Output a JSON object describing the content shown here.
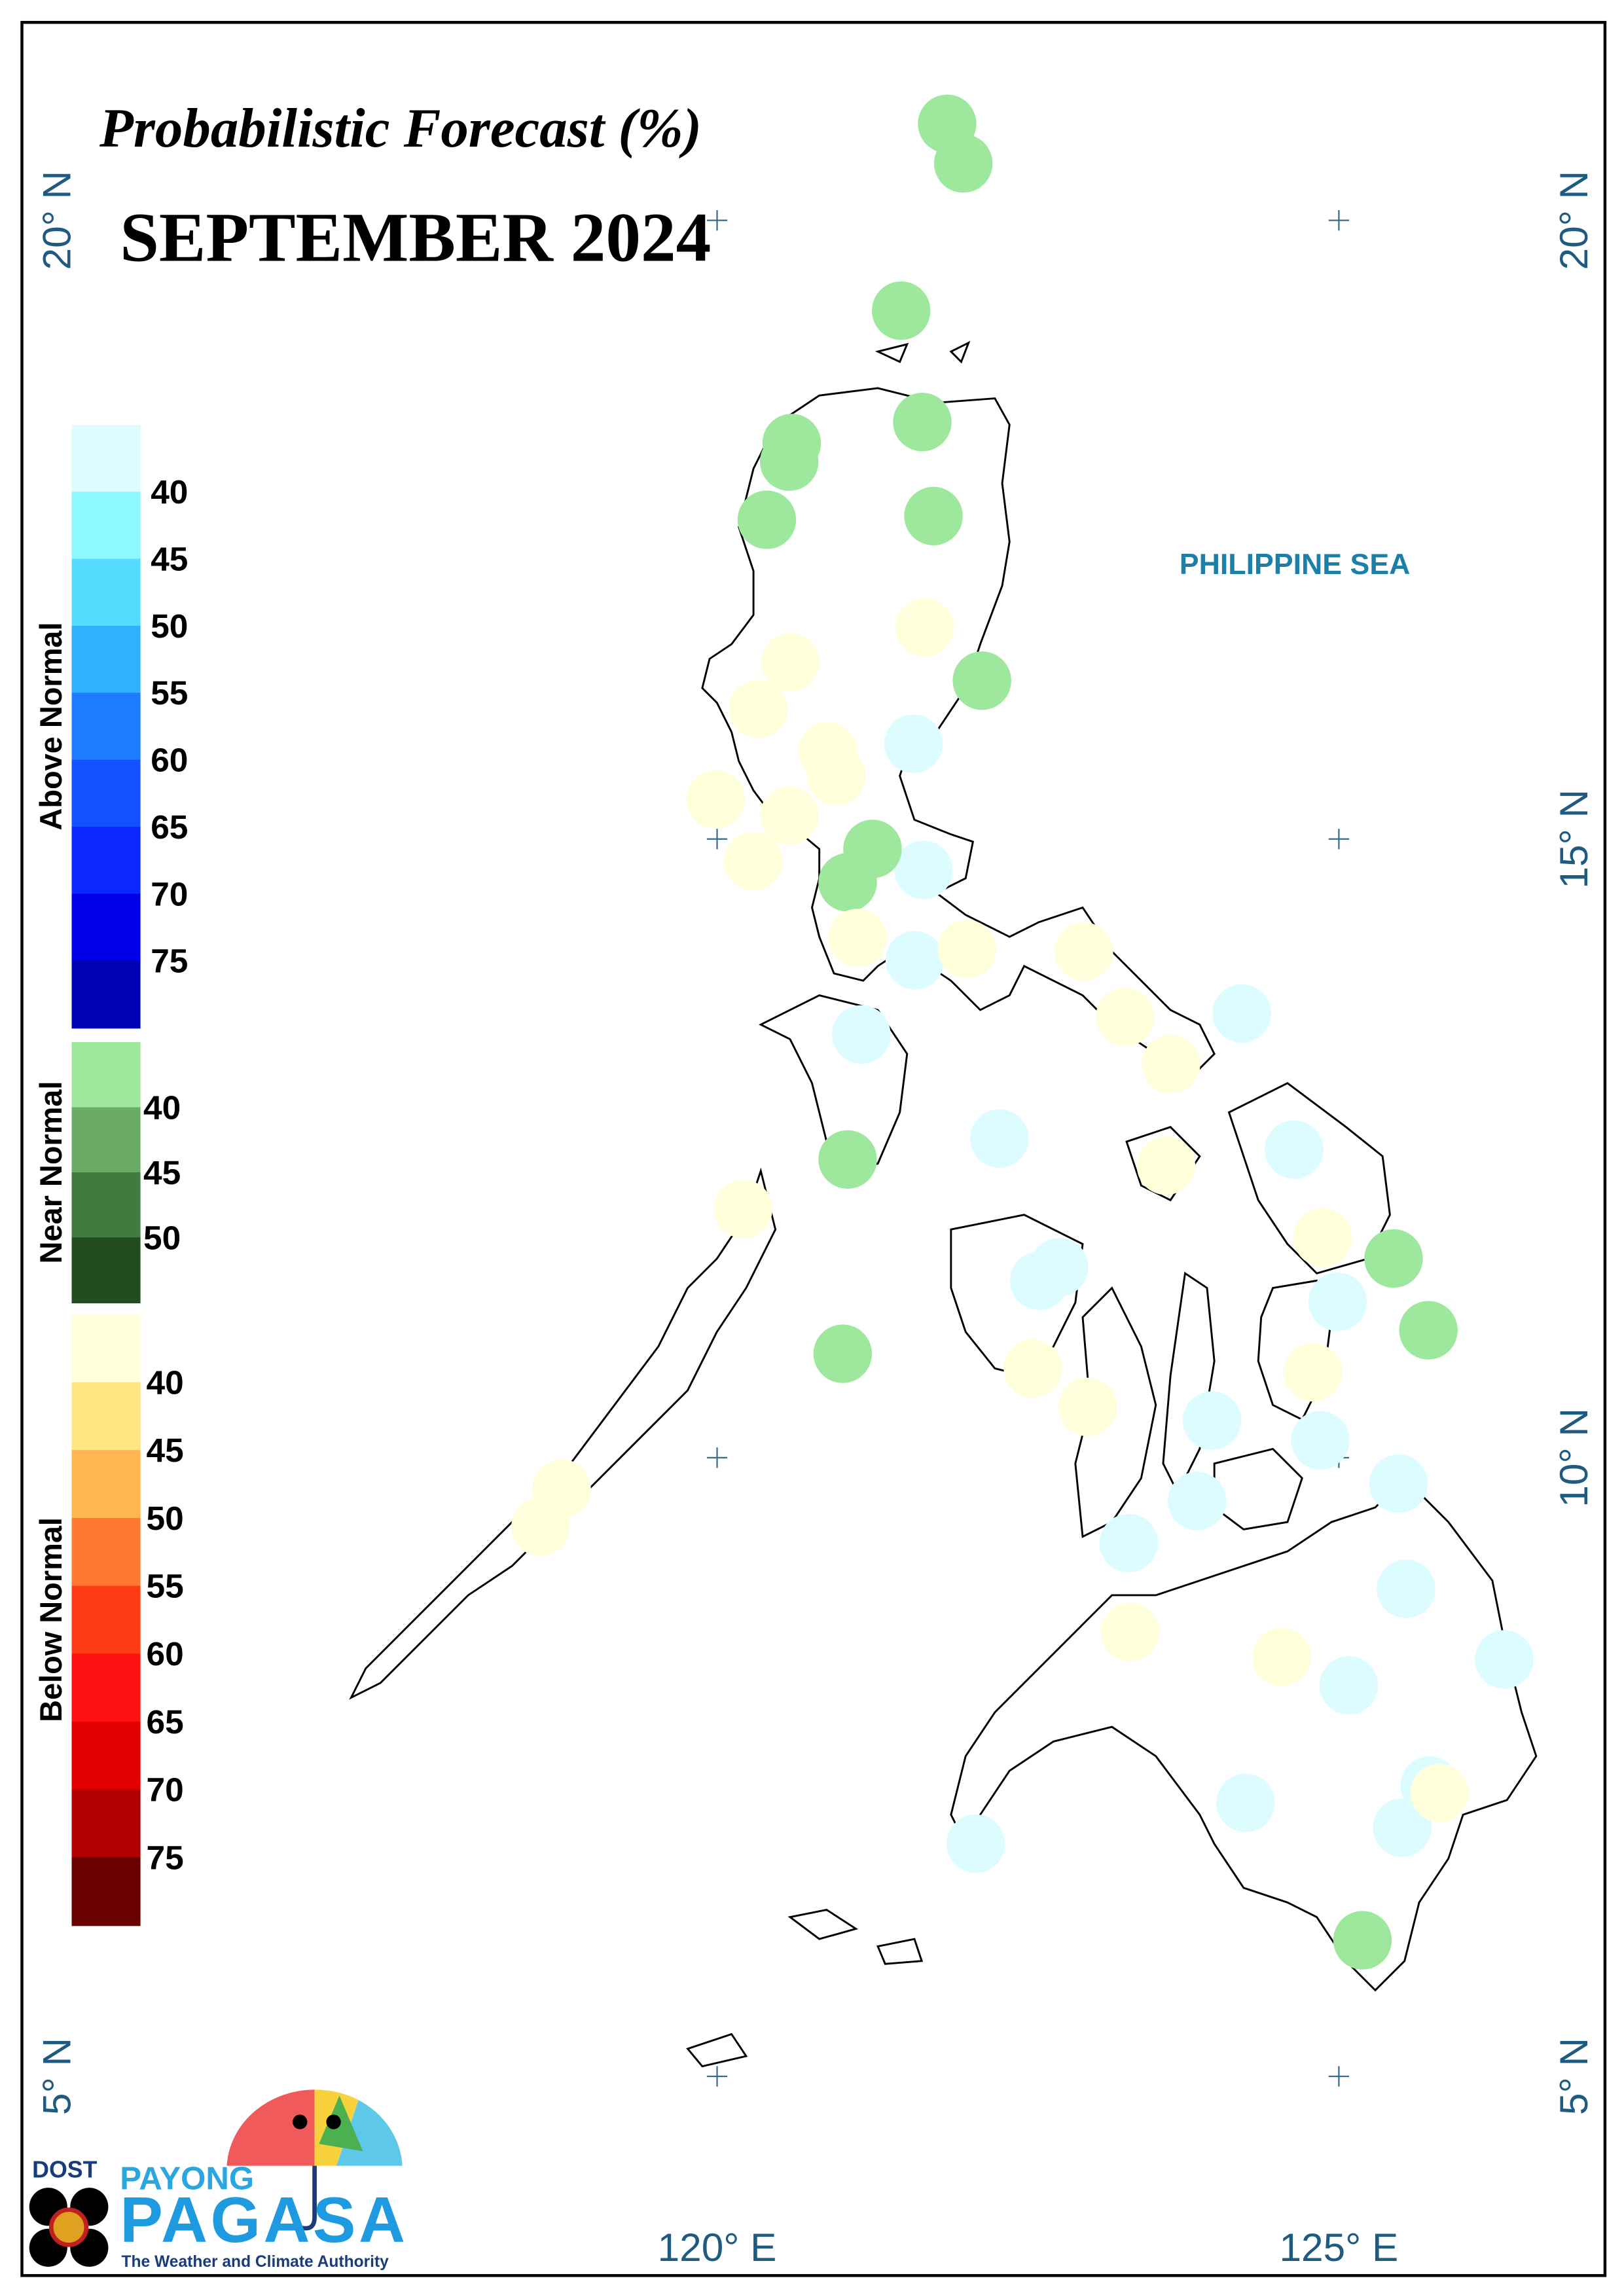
{
  "title": "Probabilistic Forecast (%)",
  "month": "SEPTEMBER 2024",
  "sea_label": "PHILIPPINE SEA",
  "map": {
    "xlim": [
      114.41,
      127.14
    ],
    "ylim": [
      3.39,
      21.6
    ],
    "xticks": [
      {
        "value": 120,
        "label": "120° E"
      },
      {
        "value": 125,
        "label": "125° E"
      }
    ],
    "yticks": [
      {
        "value": 20,
        "label": "20° N"
      },
      {
        "value": 15,
        "label": "15° N"
      },
      {
        "value": 10,
        "label": "10° N"
      },
      {
        "value": 5,
        "label": "5° N"
      }
    ],
    "legend": [
      {
        "name": "Above Normal",
        "colors": [
          "#dcfcff",
          "#8ef8ff",
          "#55dcff",
          "#30b0ff",
          "#1e7dff",
          "#1450ff",
          "#0a28ff",
          "#0000e6",
          "#0000b4"
        ],
        "ticks": [
          40,
          45,
          50,
          55,
          60,
          65,
          70,
          75
        ],
        "points": [
          [
            121.58,
            15.77
          ],
          [
            121.66,
            14.75
          ],
          [
            121.59,
            14.02
          ],
          [
            124.22,
            13.59
          ],
          [
            121.16,
            13.42
          ],
          [
            122.27,
            12.58
          ],
          [
            124.64,
            12.49
          ],
          [
            122.75,
            11.54
          ],
          [
            122.59,
            11.43
          ],
          [
            124.99,
            11.26
          ],
          [
            123.98,
            10.3
          ],
          [
            124.85,
            10.14
          ],
          [
            125.48,
            9.79
          ],
          [
            123.86,
            9.65
          ],
          [
            123.31,
            9.31
          ],
          [
            125.54,
            8.94
          ],
          [
            126.33,
            8.37
          ],
          [
            125.08,
            8.16
          ],
          [
            124.25,
            7.21
          ],
          [
            125.73,
            7.35
          ],
          [
            125.51,
            7.01
          ],
          [
            122.08,
            6.88
          ]
        ]
      },
      {
        "name": "Near Normal",
        "colors": [
          "#9ee89e",
          "#6aab68",
          "#417b40",
          "#214d21"
        ],
        "ticks": [
          40,
          45,
          50
        ],
        "points": [
          [
            121.85,
            20.78
          ],
          [
            121.98,
            20.46
          ],
          [
            121.48,
            19.27
          ],
          [
            121.65,
            18.37
          ],
          [
            120.6,
            18.2
          ],
          [
            120.58,
            18.05
          ],
          [
            120.4,
            17.58
          ],
          [
            121.74,
            17.61
          ],
          [
            122.13,
            16.28
          ],
          [
            121.25,
            14.92
          ],
          [
            121.05,
            14.65
          ],
          [
            121.05,
            12.41
          ],
          [
            125.44,
            11.61
          ],
          [
            125.72,
            11.03
          ],
          [
            121.01,
            10.84
          ],
          [
            125.19,
            6.1
          ]
        ]
      },
      {
        "name": "Below Normal",
        "colors": [
          "#ffffdc",
          "#ffe680",
          "#ffb550",
          "#ff7a30",
          "#ff3c14",
          "#ff1010",
          "#e00000",
          "#b00000",
          "#6a0000"
        ],
        "ticks": [
          40,
          45,
          50,
          55,
          60,
          65,
          70,
          75
        ],
        "points": [
          [
            121.67,
            16.71
          ],
          [
            120.59,
            16.43
          ],
          [
            120.33,
            16.05
          ],
          [
            120.89,
            15.71
          ],
          [
            120.96,
            15.51
          ],
          [
            119.99,
            15.32
          ],
          [
            120.58,
            15.19
          ],
          [
            120.29,
            14.82
          ],
          [
            121.13,
            14.2
          ],
          [
            122.01,
            14.11
          ],
          [
            122.95,
            14.09
          ],
          [
            123.28,
            13.56
          ],
          [
            123.65,
            13.18
          ],
          [
            123.61,
            12.36
          ],
          [
            120.21,
            12.01
          ],
          [
            124.87,
            11.78
          ],
          [
            122.54,
            10.72
          ],
          [
            124.79,
            10.69
          ],
          [
            122.98,
            10.41
          ],
          [
            118.75,
            9.75
          ],
          [
            118.58,
            9.44
          ],
          [
            123.32,
            8.59
          ],
          [
            124.54,
            8.39
          ],
          [
            125.81,
            7.29
          ]
        ]
      }
    ]
  },
  "logo": {
    "agency": "DOST",
    "brand_top": "PAYONG",
    "brand": "PAGASA",
    "tagline": "The Weather and Climate Authority"
  }
}
